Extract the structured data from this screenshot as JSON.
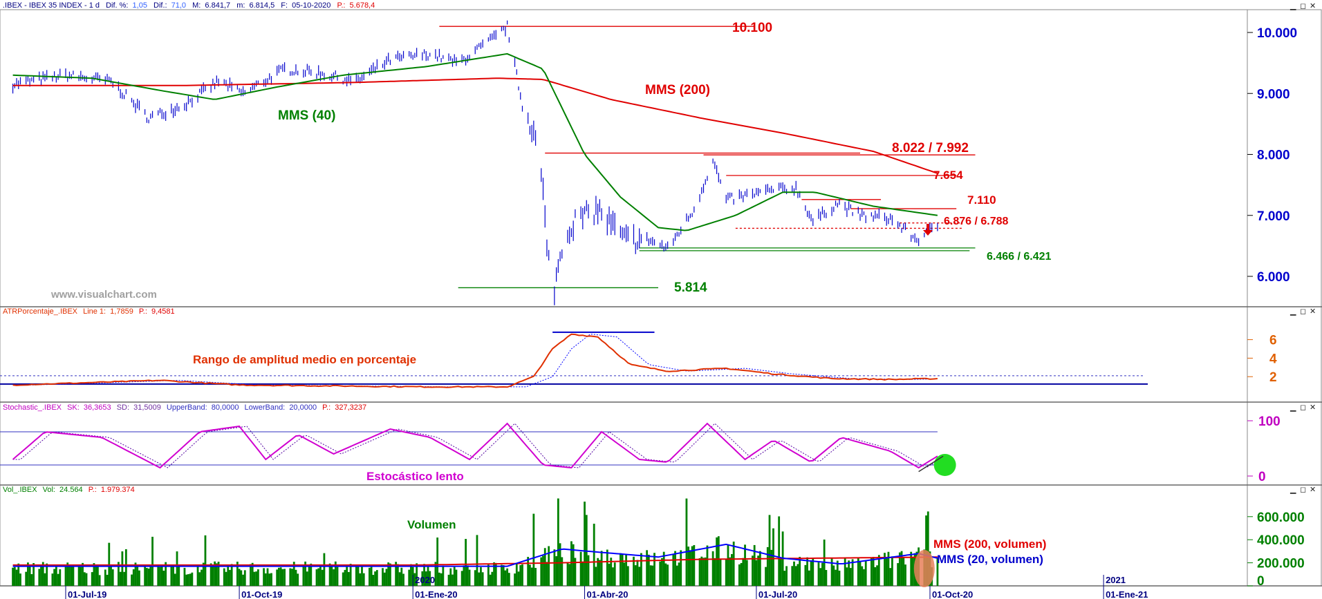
{
  "colors": {
    "price_bars": "#0000CC",
    "mms40": "#008000",
    "mms200": "#E00000",
    "axis_blue": "#0000CC",
    "atr_line": "#E03000",
    "atr_avg": "#0000FF",
    "stoch_k": "#D000D0",
    "stoch_d": "#5000A0",
    "stoch_band": "#3030C0",
    "volume_bar": "#008000",
    "volume_ma20": "#0000FF",
    "volume_ma200": "#E00000",
    "support": "#008000",
    "resistance": "#E00000"
  },
  "price_panel": {
    "header": {
      "symbol": ".IBEX - IBEX 35 INDEX - 1 d",
      "dif_pct_label": "Dif. %:",
      "dif_pct_value": "1,05",
      "dif_label": "Dif.:",
      "dif_value": "71,0",
      "max_label": "M:",
      "max_value": "6.841,7",
      "min_label": "m:",
      "min_value": "6.814,5",
      "date_label": "F:",
      "date_value": "05-10-2020",
      "p_label": "P.:",
      "p_value": "5.678,4"
    },
    "watermark": "www.visualchart.com",
    "labels": {
      "mms40": "MMS (40)",
      "mms200": "MMS (200)",
      "level_10100": "10.100",
      "level_8022": "8.022 / 7.992",
      "level_7654": "7.654",
      "level_7110": "7.110",
      "level_6876": "6.876 / 6.788",
      "level_6466": "6.466 / 6.421",
      "level_5814": "5.814"
    },
    "y_ticks": [
      "10.000",
      "9.000",
      "8.000",
      "7.000",
      "6.000"
    ]
  },
  "atr_panel": {
    "header": {
      "name": "ATRPorcentaje_.IBEX",
      "line_label": "Line 1:",
      "line_value": "1,7859",
      "p_label": "P.:",
      "p_value": "9,4581"
    },
    "label": "Rango de amplitud medio en porcentaje",
    "y_ticks": [
      "6",
      "4",
      "2"
    ]
  },
  "stoch_panel": {
    "header": {
      "name": "Stochastic_.IBEX",
      "sk_label": "SK:",
      "sk_value": "36,3653",
      "sd_label": "SD:",
      "sd_value": "31,5009",
      "ub_label": "UpperBand:",
      "ub_value": "80,0000",
      "lb_label": "LowerBand:",
      "lb_value": "20,0000",
      "p_label": "P.:",
      "p_value": "327,3237"
    },
    "label": "Estocástico lento",
    "y_ticks": [
      "100",
      "0"
    ]
  },
  "vol_panel": {
    "header": {
      "name": "Vol_.IBEX",
      "vol_label": "Vol:",
      "vol_value": "24.564",
      "p_label": "P.:",
      "p_value": "1.979.374"
    },
    "labels": {
      "volumen": "Volumen",
      "ma200": "MMS (200, volumen)",
      "ma20": "MMS (20, volumen)"
    },
    "y_ticks": [
      "600.000",
      "400.000",
      "200.000",
      "0"
    ]
  },
  "x_axis": {
    "dates": [
      "01-Jul-19",
      "01-Oct-19",
      "01-Ene-20",
      "01-Abr-20",
      "01-Jul-20",
      "01-Oct-20",
      "01-Ene-21"
    ],
    "years": [
      "2020",
      "2021"
    ]
  },
  "chart_data": [
    {
      "type": "ohlc",
      "title": "IBEX 35 INDEX",
      "series": [
        {
          "name": "MMS (40)"
        },
        {
          "name": "MMS (200)"
        }
      ],
      "x_range": [
        "2019-06",
        "2020-10"
      ],
      "ylim": [
        5600,
        10300
      ],
      "price_path": [
        [
          "2019-06-03",
          9150
        ],
        [
          "2019-07-01",
          9300
        ],
        [
          "2019-07-25",
          9200
        ],
        [
          "2019-08-14",
          8600
        ],
        [
          "2019-09-01",
          8800
        ],
        [
          "2019-09-20",
          9200
        ],
        [
          "2019-10-03",
          9000
        ],
        [
          "2019-10-25",
          9400
        ],
        [
          "2019-11-10",
          9350
        ],
        [
          "2019-12-02",
          9200
        ],
        [
          "2019-12-20",
          9550
        ],
        [
          "2020-01-10",
          9650
        ],
        [
          "2020-01-25",
          9500
        ],
        [
          "2020-02-15",
          9950
        ],
        [
          "2020-02-20",
          10100
        ],
        [
          "2020-02-28",
          8800
        ],
        [
          "2020-03-05",
          8400
        ],
        [
          "2020-03-10",
          7400
        ],
        [
          "2020-03-12",
          6400
        ],
        [
          "2020-03-16",
          5814
        ],
        [
          "2020-03-20",
          6500
        ],
        [
          "2020-03-26",
          6900
        ],
        [
          "2020-04-08",
          7100
        ],
        [
          "2020-04-22",
          6600
        ],
        [
          "2020-05-05",
          6600
        ],
        [
          "2020-05-15",
          6450
        ],
        [
          "2020-05-29",
          7100
        ],
        [
          "2020-06-08",
          7900
        ],
        [
          "2020-06-15",
          7250
        ],
        [
          "2020-07-07",
          7400
        ],
        [
          "2020-07-22",
          7450
        ],
        [
          "2020-07-31",
          6900
        ],
        [
          "2020-08-13",
          7200
        ],
        [
          "2020-08-25",
          7000
        ],
        [
          "2020-09-10",
          6950
        ],
        [
          "2020-09-24",
          6600
        ],
        [
          "2020-10-05",
          6840
        ]
      ],
      "mms40_path": [
        [
          "2019-06-03",
          9300
        ],
        [
          "2019-07-15",
          9250
        ],
        [
          "2019-08-20",
          9050
        ],
        [
          "2019-09-18",
          8900
        ],
        [
          "2019-10-20",
          9100
        ],
        [
          "2019-11-25",
          9300
        ],
        [
          "2020-01-08",
          9440
        ],
        [
          "2020-02-20",
          9650
        ],
        [
          "2020-03-10",
          9400
        ],
        [
          "2020-04-01",
          8000
        ],
        [
          "2020-04-20",
          7300
        ],
        [
          "2020-05-10",
          6800
        ],
        [
          "2020-05-25",
          6750
        ],
        [
          "2020-06-20",
          7000
        ],
        [
          "2020-07-15",
          7380
        ],
        [
          "2020-08-01",
          7380
        ],
        [
          "2020-09-01",
          7150
        ],
        [
          "2020-10-05",
          7000
        ]
      ],
      "mms200_path": [
        [
          "2019-06-03",
          9130
        ],
        [
          "2019-09-01",
          9130
        ],
        [
          "2019-12-01",
          9180
        ],
        [
          "2020-02-15",
          9250
        ],
        [
          "2020-03-10",
          9230
        ],
        [
          "2020-04-15",
          8900
        ],
        [
          "2020-06-01",
          8600
        ],
        [
          "2020-07-15",
          8350
        ],
        [
          "2020-09-01",
          8050
        ],
        [
          "2020-10-05",
          7690
        ]
      ],
      "levels": [
        10100,
        8022,
        7992,
        7654,
        7110,
        6876,
        6788,
        6466,
        6421,
        5814
      ]
    },
    {
      "type": "line",
      "title": "ATRPorcentaje_.IBEX",
      "ylim": [
        0,
        7.5
      ],
      "values_path": [
        [
          "2019-06-03",
          1.1
        ],
        [
          "2019-08-20",
          1.6
        ],
        [
          "2019-10-01",
          1.1
        ],
        [
          "2020-01-10",
          0.9
        ],
        [
          "2020-02-20",
          0.9
        ],
        [
          "2020-03-05",
          2.0
        ],
        [
          "2020-03-15",
          5.0
        ],
        [
          "2020-03-25",
          6.6
        ],
        [
          "2020-04-08",
          6.3
        ],
        [
          "2020-04-25",
          3.3
        ],
        [
          "2020-05-15",
          2.6
        ],
        [
          "2020-06-15",
          2.9
        ],
        [
          "2020-07-10",
          2.3
        ],
        [
          "2020-08-10",
          1.8
        ],
        [
          "2020-09-10",
          1.7
        ],
        [
          "2020-10-05",
          1.79
        ]
      ]
    },
    {
      "type": "line",
      "title": "Stochastic_.IBEX",
      "ylim": [
        0,
        100
      ],
      "bands": [
        80,
        20
      ],
      "sk_path": [
        [
          "2019-06-03",
          30
        ],
        [
          "2019-06-20",
          80
        ],
        [
          "2019-07-20",
          70
        ],
        [
          "2019-08-20",
          15
        ],
        [
          "2019-09-10",
          80
        ],
        [
          "2019-10-01",
          90
        ],
        [
          "2019-10-15",
          30
        ],
        [
          "2019-11-01",
          75
        ],
        [
          "2019-11-20",
          40
        ],
        [
          "2019-12-20",
          85
        ],
        [
          "2020-01-10",
          70
        ],
        [
          "2020-01-31",
          30
        ],
        [
          "2020-02-20",
          95
        ],
        [
          "2020-03-10",
          20
        ],
        [
          "2020-03-25",
          15
        ],
        [
          "2020-04-10",
          80
        ],
        [
          "2020-04-30",
          30
        ],
        [
          "2020-05-15",
          25
        ],
        [
          "2020-06-05",
          95
        ],
        [
          "2020-06-25",
          30
        ],
        [
          "2020-07-10",
          65
        ],
        [
          "2020-07-30",
          25
        ],
        [
          "2020-08-15",
          70
        ],
        [
          "2020-09-10",
          45
        ],
        [
          "2020-09-25",
          15
        ],
        [
          "2020-10-05",
          36
        ]
      ]
    },
    {
      "type": "bar",
      "title": "Vol_.IBEX",
      "ylim": [
        0,
        650000
      ],
      "series": [
        {
          "name": "MMS (200, volumen)"
        },
        {
          "name": "MMS (20, volumen)"
        }
      ],
      "ma20_path": [
        [
          "2019-06-03",
          170000
        ],
        [
          "2019-10-01",
          170000
        ],
        [
          "2020-02-20",
          170000
        ],
        [
          "2020-03-20",
          320000
        ],
        [
          "2020-04-10",
          290000
        ],
        [
          "2020-05-10",
          250000
        ],
        [
          "2020-06-15",
          360000
        ],
        [
          "2020-07-15",
          240000
        ],
        [
          "2020-08-15",
          190000
        ],
        [
          "2020-09-25",
          280000
        ],
        [
          "2020-10-05",
          240000
        ]
      ],
      "ma200_path": [
        [
          "2019-06-03",
          180000
        ],
        [
          "2020-01-01",
          180000
        ],
        [
          "2020-03-20",
          200000
        ],
        [
          "2020-06-01",
          230000
        ],
        [
          "2020-10-05",
          250000
        ]
      ]
    }
  ]
}
